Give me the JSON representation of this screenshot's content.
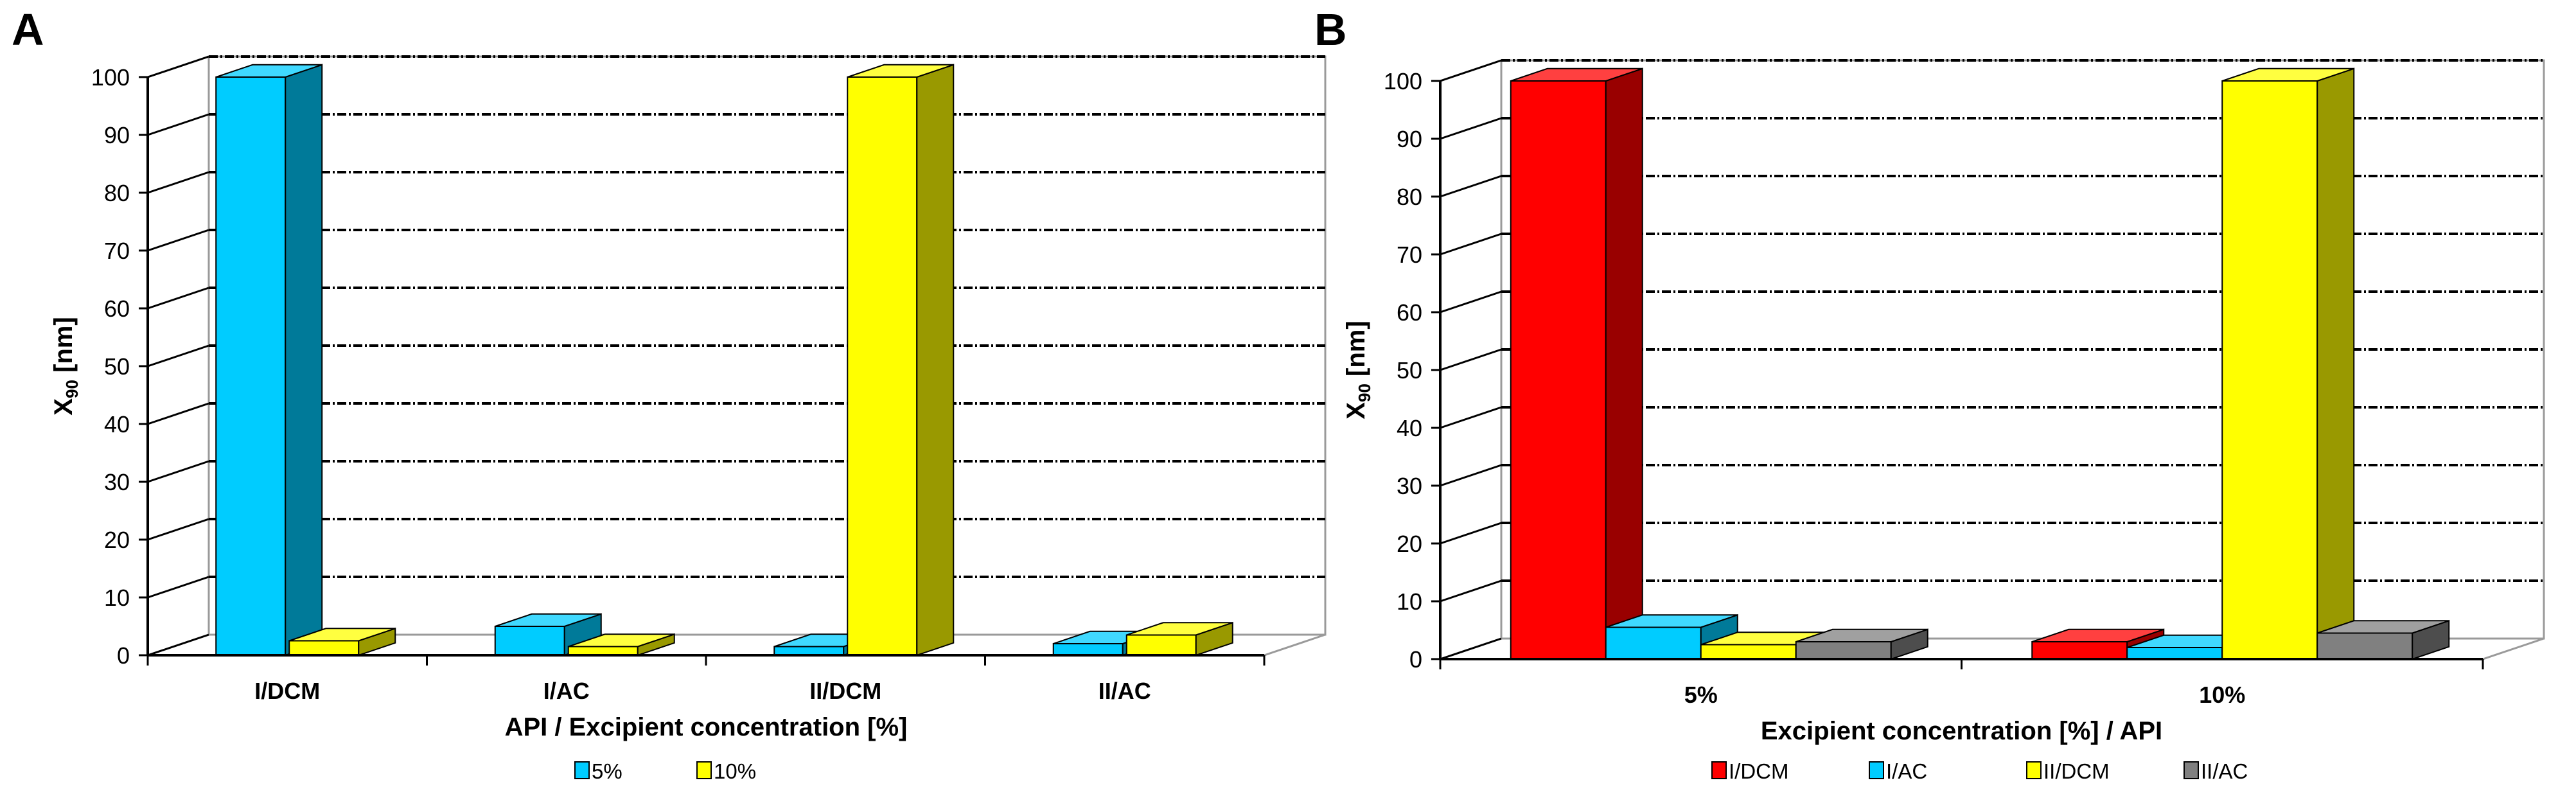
{
  "chart_data": [
    {
      "panel": "A",
      "type": "bar",
      "style": "3d-column",
      "categories": [
        "I/DCM",
        "I/AC",
        "II/DCM",
        "II/AC"
      ],
      "series": [
        {
          "name": "5%",
          "color": "#00CCFF",
          "values": [
            100,
            5,
            1.5,
            2
          ]
        },
        {
          "name": "10%",
          "color": "#FFFF00",
          "values": [
            2.5,
            1.5,
            100,
            3.5
          ]
        }
      ],
      "xlabel": "API / Excipient concentration [%]",
      "ylabel": "X",
      "ylabel_sub": "90",
      "ylabel_unit": " [nm]",
      "ylim": [
        0,
        100
      ],
      "yticks": [
        0,
        10,
        20,
        30,
        40,
        50,
        60,
        70,
        80,
        90,
        100
      ],
      "grid": true,
      "legend": "bottom"
    },
    {
      "panel": "B",
      "type": "bar",
      "style": "3d-column",
      "categories": [
        "5%",
        "10%"
      ],
      "series": [
        {
          "name": "I/DCM",
          "color": "#FF0000",
          "values": [
            100,
            3
          ]
        },
        {
          "name": "I/AC",
          "color": "#00CCFF",
          "values": [
            5.5,
            2
          ]
        },
        {
          "name": "II/DCM",
          "color": "#FFFF00",
          "values": [
            2.5,
            100
          ]
        },
        {
          "name": "II/AC",
          "color": "#808080",
          "values": [
            3,
            4.5
          ]
        }
      ],
      "xlabel": "Excipient concentration [%] / API",
      "ylabel": "X",
      "ylabel_sub": "90",
      "ylabel_unit": " [nm]",
      "ylim": [
        0,
        100
      ],
      "yticks": [
        0,
        10,
        20,
        30,
        40,
        50,
        60,
        70,
        80,
        90,
        100
      ],
      "grid": true,
      "legend": "bottom"
    }
  ]
}
